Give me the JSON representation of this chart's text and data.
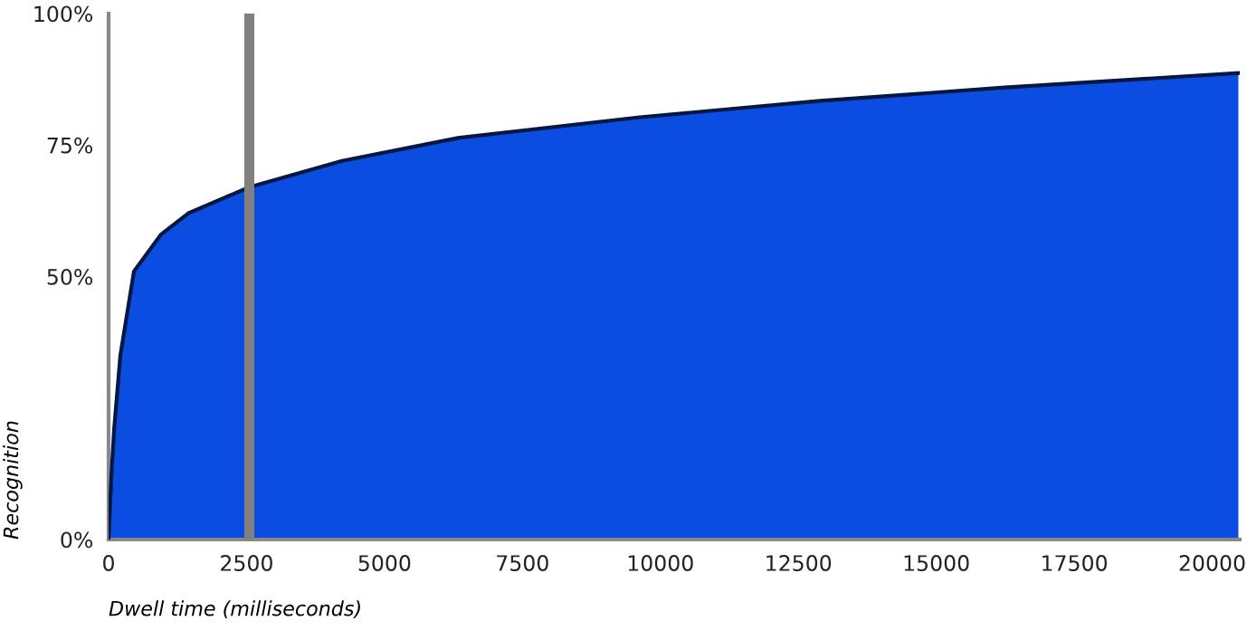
{
  "chart_data": {
    "type": "area",
    "xlabel": "Dwell time (milliseconds)",
    "ylabel": "Recognition",
    "x": [
      0,
      50,
      100,
      213,
      460,
      950,
      1440,
      2550,
      4230,
      6355,
      9630,
      12900,
      16180,
      20475
    ],
    "series": [
      {
        "color": "#0a4de0",
        "values": [
          0,
          12,
          21,
          35,
          51,
          58,
          62,
          67,
          72,
          76.4,
          80.3,
          83.4,
          85.9,
          88.7
        ]
      }
    ],
    "xlim": [
      0,
      20500
    ],
    "xticks": [
      0,
      2500,
      5000,
      7500,
      10000,
      12500,
      15000,
      17500,
      20000
    ],
    "ylim": [
      0,
      100
    ],
    "yticks": [
      {
        "value": 0,
        "label": "0%"
      },
      {
        "value": 50,
        "label": "50%"
      },
      {
        "value": 75,
        "label": "75%"
      },
      {
        "value": 100,
        "label": "100%"
      }
    ],
    "ref_lines": [
      {
        "axis": "x",
        "value": 2550,
        "color": "#808080"
      }
    ],
    "grid": false,
    "legend": false
  }
}
